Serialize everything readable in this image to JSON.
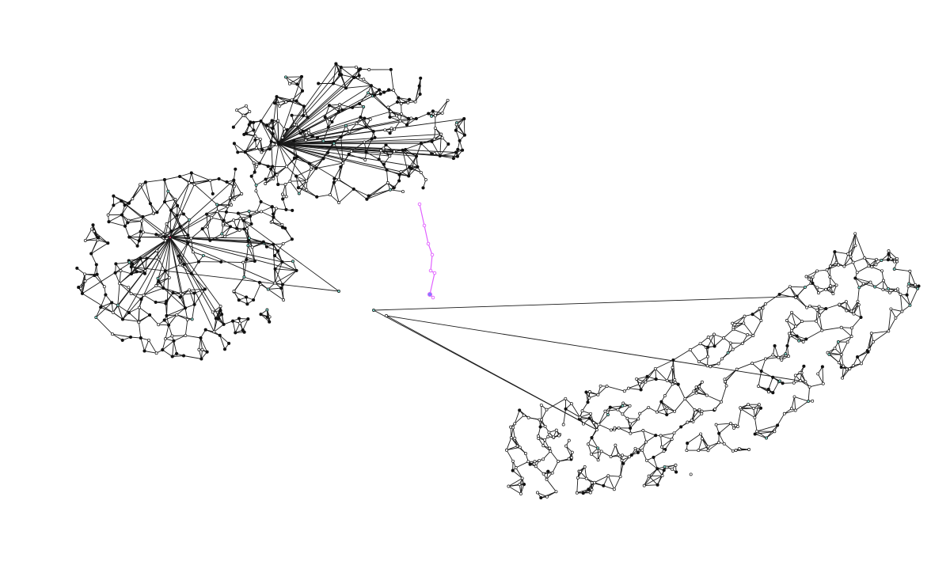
{
  "figure": {
    "kind": "network-graph",
    "background": "#ffffff",
    "colors": {
      "edge": "#1a1a1a",
      "node_fill": "#ffffff",
      "node_stroke": "#111111",
      "node_dark": "#111111",
      "node_teal": "#7fd3c7",
      "node_red": "#b0305a",
      "bridge_path": "#e060ff",
      "bridge_node": "#8080ff"
    },
    "components": [
      {
        "id": "upper-left-cluster",
        "description_label": ""
      },
      {
        "id": "lower-right-band",
        "description_label": ""
      },
      {
        "id": "magenta-chain",
        "description_label": ""
      }
    ]
  }
}
